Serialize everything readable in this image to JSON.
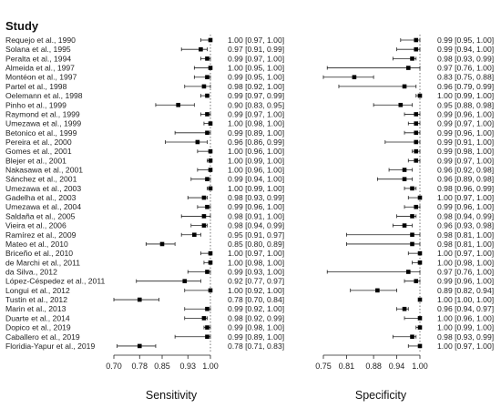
{
  "chart_data": {
    "type": "forest",
    "title": "Study",
    "studies": [
      "Requejo et al., 1990",
      "Solana et al., 1995",
      "Peralta et al., 1994",
      "Almeida et al., 1997",
      "Montéon et al., 1997",
      "Partel et al., 1998",
      "Oelemann et al., 1998",
      "Pinho et al., 1999",
      "Raymond et al., 1999",
      "Umezawa et al., 1999",
      "Betonico et al., 1999",
      "Pereira et al., 2000",
      "Gomes et al., 2001",
      "Blejer et al., 2001",
      "Nakasawa et al., 2001",
      "Sánchez et al., 2001",
      "Umezawa et al., 2003",
      "Gadelha et al., 2003",
      "Umezawa et al., 2004",
      "Saldaña et al., 2005",
      "Vieira et al., 2006",
      "Ramírez et al., 2009",
      "Mateo et al., 2010",
      "Briceño et al., 2010",
      "de Marchi et al., 2011",
      "da Silva., 2012",
      "López-Céspedez et al., 2011",
      "Longui et al., 2012",
      "Tustin et al., 2012",
      "Marin et al., 2013",
      "Duarte et al., 2014",
      "Dopico et al., 2019",
      "Caballero et al., 2019",
      "Floridia-Yapur et al., 2019"
    ],
    "panels": [
      {
        "name": "sensitivity",
        "xlabel": "Sensitivity",
        "xlim": [
          0.7,
          1.0
        ],
        "ticks": [
          0.7,
          0.78,
          0.85,
          0.93,
          1.0
        ],
        "tick_labels": [
          "0.70",
          "0.78",
          "0.85",
          "0.93",
          "1.00"
        ],
        "estimates": [
          1.0,
          0.97,
          0.99,
          1.0,
          0.99,
          0.98,
          0.99,
          0.9,
          0.99,
          1.0,
          0.99,
          0.96,
          1.0,
          1.0,
          1.0,
          0.99,
          1.0,
          0.98,
          0.99,
          0.98,
          0.98,
          0.95,
          0.85,
          1.0,
          1.0,
          0.99,
          0.92,
          1.0,
          0.78,
          0.99,
          0.98,
          0.99,
          0.99,
          0.78
        ],
        "lower": [
          0.97,
          0.91,
          0.97,
          0.95,
          0.95,
          0.92,
          0.97,
          0.83,
          0.97,
          0.98,
          0.89,
          0.86,
          0.96,
          0.99,
          0.96,
          0.94,
          0.99,
          0.93,
          0.96,
          0.91,
          0.94,
          0.91,
          0.8,
          0.97,
          0.98,
          0.93,
          0.77,
          0.92,
          0.7,
          0.92,
          0.92,
          0.98,
          0.89,
          0.71
        ],
        "upper": [
          1.0,
          0.99,
          1.0,
          1.0,
          1.0,
          1.0,
          0.99,
          0.95,
          1.0,
          1.0,
          1.0,
          0.99,
          1.0,
          1.0,
          1.0,
          1.0,
          1.0,
          0.99,
          1.0,
          1.0,
          0.99,
          0.97,
          0.89,
          1.0,
          1.0,
          1.0,
          0.97,
          1.0,
          0.84,
          1.0,
          0.99,
          1.0,
          1.0,
          0.83
        ],
        "ci_labels": [
          "1.00 [0.97, 1.00]",
          "0.97 [0.91, 0.99]",
          "0.99 [0.97, 1.00]",
          "1.00 [0.95, 1.00]",
          "0.99 [0.95, 1.00]",
          "0.98 [0.92, 1.00]",
          "0.99 [0.97, 0.99]",
          "0.90 [0.83, 0.95]",
          "0.99 [0.97, 1.00]",
          "1.00 [0.98, 1.00]",
          "0.99 [0.89, 1.00]",
          "0.96 [0.86, 0.99]",
          "1.00 [0.96, 1.00]",
          "1.00 [0.99, 1.00]",
          "1.00 [0.96, 1.00]",
          "0.99 [0.94, 1.00]",
          "1.00 [0.99, 1.00]",
          "0.98 [0.93, 0.99]",
          "0.99 [0.96, 1.00]",
          "0.98 [0.91, 1.00]",
          "0.98 [0.94, 0.99]",
          "0.95 [0.91, 0.97]",
          "0.85 [0.80, 0.89]",
          "1.00 [0.97, 1.00]",
          "1.00 [0.98, 1.00]",
          "0.99 [0.93, 1.00]",
          "0.92 [0.77, 0.97]",
          "1.00 [0.92, 1.00]",
          "0.78 [0.70, 0.84]",
          "0.99 [0.92, 1.00]",
          "0.98 [0.92, 0.99]",
          "0.99 [0.98, 1.00]",
          "0.99 [0.89, 1.00]",
          "0.78 [0.71, 0.83]"
        ]
      },
      {
        "name": "specificity",
        "xlabel": "Specificity",
        "xlim": [
          0.75,
          1.0
        ],
        "ticks": [
          0.75,
          0.81,
          0.88,
          0.94,
          1.0
        ],
        "tick_labels": [
          "0.75",
          "0.81",
          "0.88",
          "0.94",
          "1.00"
        ],
        "estimates": [
          0.99,
          0.99,
          0.98,
          0.97,
          0.83,
          0.96,
          1.0,
          0.95,
          0.99,
          0.99,
          0.99,
          0.99,
          0.99,
          0.99,
          0.96,
          0.96,
          0.98,
          1.0,
          0.99,
          0.98,
          0.96,
          0.98,
          0.98,
          1.0,
          1.0,
          0.97,
          0.99,
          0.89,
          1.0,
          0.96,
          1.0,
          1.0,
          0.98,
          1.0
        ],
        "lower": [
          0.95,
          0.94,
          0.93,
          0.76,
          0.75,
          0.79,
          0.99,
          0.88,
          0.96,
          0.97,
          0.96,
          0.91,
          0.98,
          0.97,
          0.92,
          0.89,
          0.96,
          0.97,
          0.96,
          0.94,
          0.93,
          0.81,
          0.81,
          0.97,
          0.98,
          0.76,
          0.96,
          0.82,
          1.0,
          0.94,
          0.96,
          0.99,
          0.93,
          0.97
        ],
        "upper": [
          1.0,
          1.0,
          0.99,
          1.0,
          0.88,
          0.99,
          1.0,
          0.98,
          1.0,
          1.0,
          1.0,
          1.0,
          1.0,
          1.0,
          0.98,
          0.98,
          0.99,
          1.0,
          1.0,
          0.99,
          0.98,
          1.0,
          1.0,
          1.0,
          1.0,
          1.0,
          1.0,
          0.94,
          1.0,
          0.97,
          1.0,
          1.0,
          0.99,
          1.0
        ],
        "ci_labels": [
          "0.99 [0.95, 1.00]",
          "0.99 [0.94, 1.00]",
          "0.98 [0.93, 0.99]",
          "0.97 [0.76, 1.00]",
          "0.83 [0.75, 0.88]",
          "0.96 [0.79, 0.99]",
          "1.00 [0.99, 1.00]",
          "0.95 [0.88, 0.98]",
          "0.99 [0.96, 1.00]",
          "0.99 [0.97, 1.00]",
          "0.99 [0.96, 1.00]",
          "0.99 [0.91, 1.00]",
          "0.99 [0.98, 1.00]",
          "0.99 [0.97, 1.00]",
          "0.96 [0.92, 0.98]",
          "0.96 [0.89, 0.98]",
          "0.98 [0.96, 0.99]",
          "1.00 [0.97, 1.00]",
          "0.99 [0.96, 1.00]",
          "0.98 [0.94, 0.99]",
          "0.96 [0.93, 0.98]",
          "0.98 [0.81, 1.00]",
          "0.98 [0.81, 1.00]",
          "1.00 [0.97, 1.00]",
          "1.00 [0.98, 1.00]",
          "0.97 [0.76, 1.00]",
          "0.99 [0.96, 1.00]",
          "0.89 [0.82, 0.94]",
          "1.00 [1.00, 1.00]",
          "0.96 [0.94, 0.97]",
          "1.00 [0.96, 1.00]",
          "1.00 [0.99, 1.00]",
          "0.98 [0.93, 0.99]",
          "1.00 [0.97, 1.00]"
        ]
      }
    ],
    "grid": false,
    "legend": "none"
  }
}
